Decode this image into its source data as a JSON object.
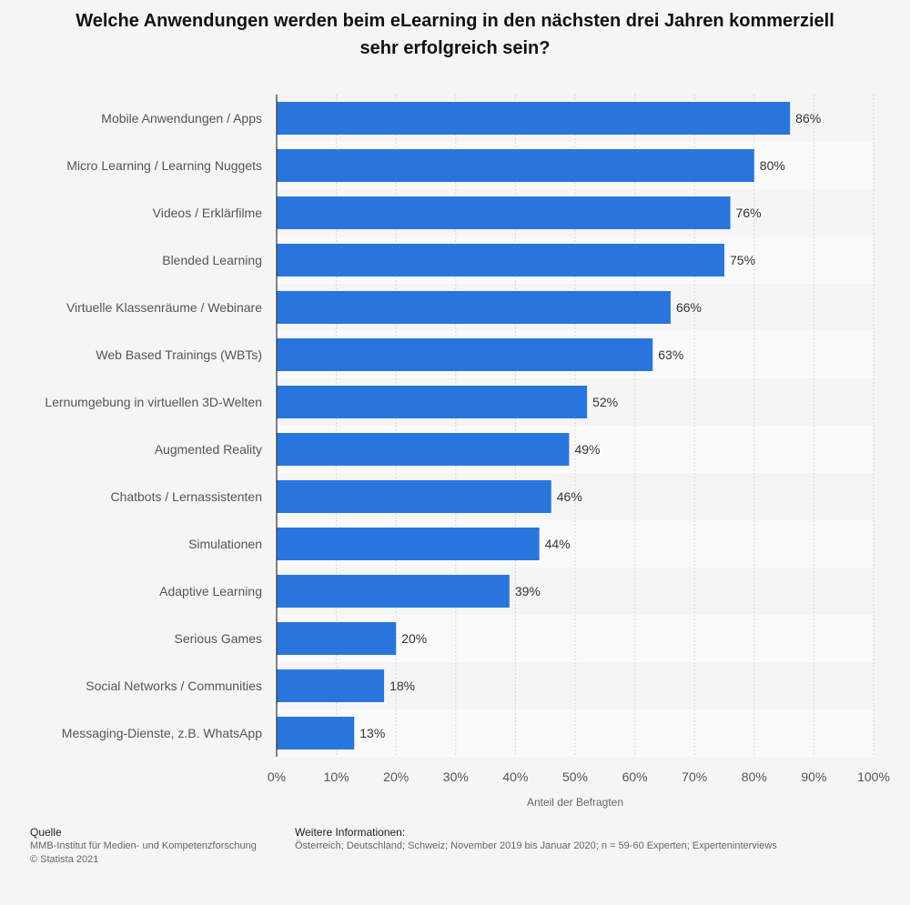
{
  "title": "Welche Anwendungen werden beim eLearning in den nächsten drei Jahren kommerziell sehr erfolgreich sein?",
  "colors": {
    "bar": "#2876dd",
    "background": "#f5f5f5",
    "band": "#fafafa",
    "grid": "#d8d8d8",
    "axis": "#333333",
    "label": "#555555"
  },
  "chart_data": {
    "type": "bar",
    "orientation": "horizontal",
    "categories": [
      "Mobile Anwendungen / Apps",
      "Micro Learning / Learning Nuggets",
      "Videos / Erklärfilme",
      "Blended Learning",
      "Virtuelle Klassenräume / Webinare",
      "Web Based Trainings (WBTs)",
      "Lernumgebung in virtuellen 3D-Welten",
      "Augmented Reality",
      "Chatbots / Lernassistenten",
      "Simulationen",
      "Adaptive Learning",
      "Serious Games",
      "Social Networks / Communities",
      "Messaging-Dienste, z.B. WhatsApp"
    ],
    "values": [
      86,
      80,
      76,
      75,
      66,
      63,
      52,
      49,
      46,
      44,
      39,
      20,
      18,
      13
    ],
    "value_labels": [
      "86%",
      "80%",
      "76%",
      "75%",
      "66%",
      "63%",
      "52%",
      "49%",
      "46%",
      "44%",
      "39%",
      "20%",
      "18%",
      "13%"
    ],
    "xlim": [
      0,
      100
    ],
    "xticks": [
      0,
      10,
      20,
      30,
      40,
      50,
      60,
      70,
      80,
      90,
      100
    ],
    "xtick_labels": [
      "0%",
      "10%",
      "20%",
      "30%",
      "40%",
      "50%",
      "60%",
      "70%",
      "80%",
      "90%",
      "100%"
    ],
    "xlabel": "Anteil der Befragten",
    "grid": true,
    "legend": "none"
  },
  "footer": {
    "source_heading": "Quelle",
    "source_text": "MMB-Institut für Medien- und Kompetenzforschung",
    "copyright": "© Statista 2021",
    "info_heading": "Weitere Informationen:",
    "info_text": "Österreich; Deutschland; Schweiz; November 2019 bis Januar 2020; n = 59-60 Experten; Experteninterviews"
  }
}
